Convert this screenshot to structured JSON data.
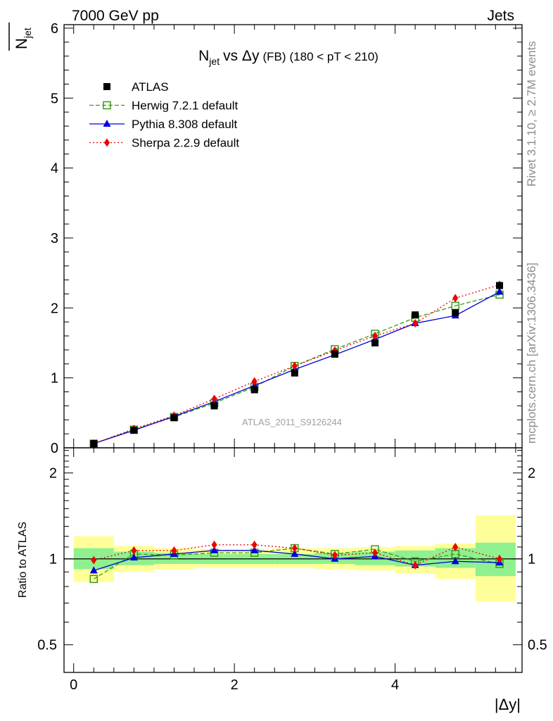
{
  "header": {
    "left": "7000 GeV pp",
    "right": "Jets"
  },
  "side_labels": {
    "rivet": "Rivet 3.1.10, ≥ 2.7M events",
    "mcplots": "mcplots.cern.ch [arXiv:1306.3436]"
  },
  "watermark": "ATLAS_2011_S9126244",
  "colors": {
    "atlas": "#000000",
    "herwig": "#3a9a1a",
    "pythia": "#0000dd",
    "sherpa": "#ee0000",
    "band_inner": "#8ff08f",
    "band_outer": "#ffff99"
  },
  "chart_data": [
    {
      "type": "line",
      "title": "N_jet vs Δy (FB) (180 < pT < 210)",
      "title_parts": {
        "n": "N",
        "sub": "jet",
        "vs": "vs Δy",
        "fb": "(FB)",
        "range": "(180 < pT < 210)"
      },
      "ylabel": "―N_jet",
      "ylabel_parts": {
        "n": "N",
        "sub": "jet"
      },
      "xlim": [
        -0.12,
        5.58
      ],
      "ylim": [
        0,
        6.05
      ],
      "y_ticks": [
        0,
        1,
        2,
        3,
        4,
        5,
        6
      ],
      "y_tick_labels": [
        "0",
        "1",
        "2",
        "3",
        "4",
        "5",
        "6"
      ],
      "x": [
        0.25,
        0.75,
        1.25,
        1.75,
        2.25,
        2.75,
        3.25,
        3.75,
        4.25,
        4.75,
        5.3
      ],
      "legend_position": "top-left",
      "series": [
        {
          "name": "ATLAS",
          "style": "data",
          "values": [
            0.06,
            0.25,
            0.43,
            0.6,
            0.83,
            1.07,
            1.34,
            1.5,
            1.9,
            1.93,
            2.32
          ]
        },
        {
          "name": "Herwig 7.2.1 default",
          "style": "herwig",
          "values": [
            0.06,
            0.26,
            0.44,
            0.64,
            0.87,
            1.17,
            1.41,
            1.63,
            1.86,
            2.03,
            2.19
          ]
        },
        {
          "name": "Pythia 8.308 default",
          "style": "pythia",
          "values": [
            0.06,
            0.25,
            0.45,
            0.66,
            0.89,
            1.12,
            1.33,
            1.55,
            1.78,
            1.89,
            2.23
          ]
        },
        {
          "name": "Sherpa 2.2.9 default",
          "style": "sherpa",
          "values": [
            0.06,
            0.27,
            0.46,
            0.7,
            0.95,
            1.17,
            1.39,
            1.6,
            1.78,
            2.14,
            2.33
          ]
        }
      ]
    },
    {
      "type": "line",
      "ylabel": "Ratio to ATLAS",
      "xlabel": "|Δy|",
      "ylim": [
        0.4,
        2.45
      ],
      "y_scale": "log",
      "y_tick_labels": [
        "0.5",
        "1",
        "2"
      ],
      "y_ticks": [
        0.5,
        1,
        2
      ],
      "x_tick_labels": [
        "0",
        "2",
        "4"
      ],
      "x_ticks": [
        0,
        2,
        4
      ],
      "x": [
        0.25,
        0.75,
        1.25,
        1.75,
        2.25,
        2.75,
        3.25,
        3.75,
        4.25,
        4.75,
        5.3
      ],
      "bins": [
        [
          0,
          0.5
        ],
        [
          0.5,
          1.0
        ],
        [
          1.0,
          1.5
        ],
        [
          1.5,
          2.0
        ],
        [
          2.0,
          2.5
        ],
        [
          2.5,
          3.0
        ],
        [
          3.0,
          3.5
        ],
        [
          3.5,
          4.0
        ],
        [
          4.0,
          4.5
        ],
        [
          4.5,
          5.0
        ],
        [
          5.0,
          5.5
        ]
      ],
      "band_inner": [
        [
          0.92,
          1.09
        ],
        [
          0.95,
          1.06
        ],
        [
          0.96,
          1.05
        ],
        [
          0.96,
          1.04
        ],
        [
          0.96,
          1.04
        ],
        [
          0.96,
          1.04
        ],
        [
          0.96,
          1.05
        ],
        [
          0.95,
          1.06
        ],
        [
          0.94,
          1.07
        ],
        [
          0.93,
          1.09
        ],
        [
          0.87,
          1.14
        ]
      ],
      "band_outer": [
        [
          0.83,
          1.2
        ],
        [
          0.9,
          1.11
        ],
        [
          0.92,
          1.09
        ],
        [
          0.93,
          1.08
        ],
        [
          0.93,
          1.08
        ],
        [
          0.93,
          1.09
        ],
        [
          0.92,
          1.09
        ],
        [
          0.91,
          1.1
        ],
        [
          0.89,
          1.11
        ],
        [
          0.85,
          1.13
        ],
        [
          0.71,
          1.42
        ]
      ],
      "series": [
        {
          "name": "Herwig 7.2.1 default",
          "style": "herwig",
          "values": [
            0.85,
            1.04,
            1.03,
            1.05,
            1.05,
            1.09,
            1.04,
            1.08,
            0.98,
            1.04,
            0.96
          ]
        },
        {
          "name": "Pythia 8.308 default",
          "style": "pythia",
          "values": [
            0.91,
            1.01,
            1.04,
            1.07,
            1.07,
            1.04,
            1.0,
            1.02,
            0.95,
            0.98,
            0.97
          ]
        },
        {
          "name": "Sherpa 2.2.9 default",
          "style": "sherpa",
          "values": [
            0.99,
            1.07,
            1.07,
            1.12,
            1.12,
            1.09,
            1.03,
            1.05,
            0.95,
            1.1,
            1.0
          ]
        }
      ]
    }
  ]
}
